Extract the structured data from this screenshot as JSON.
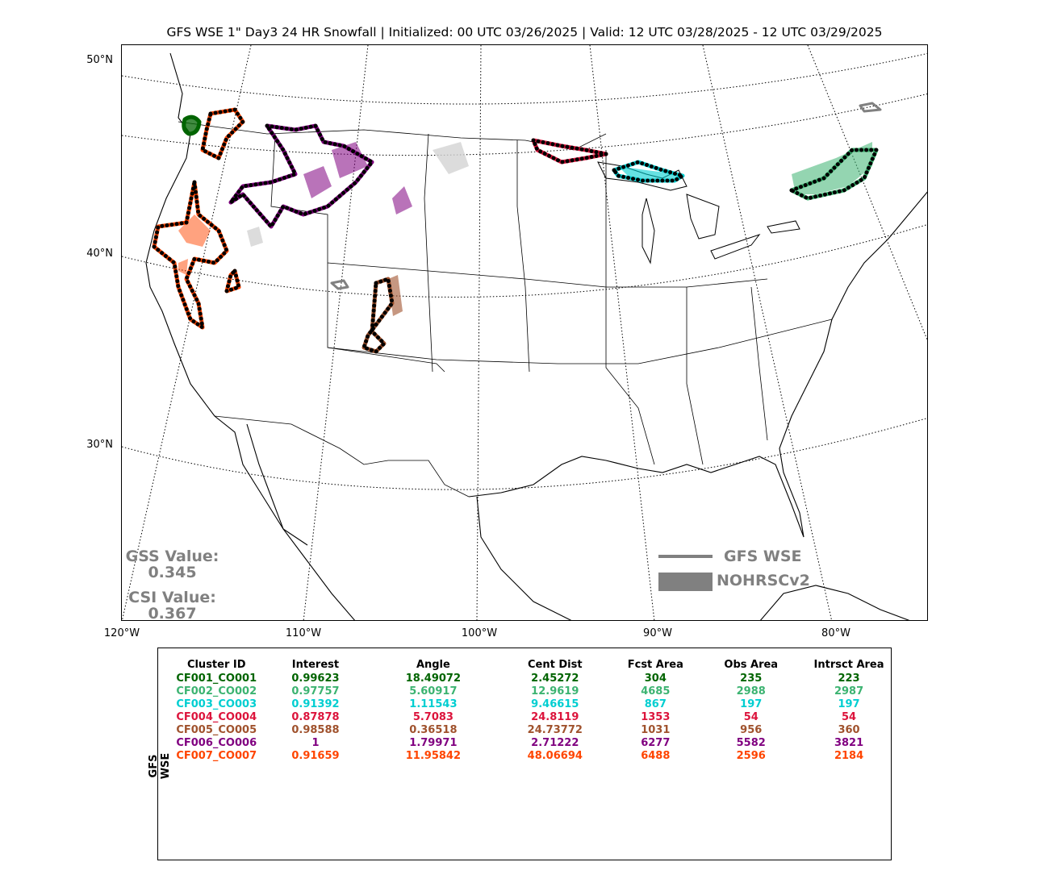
{
  "title": "GFS WSE 1\" Day3 24 HR Snowfall | Initialized: 00 UTC 03/26/2025 | Valid: 12 UTC 03/28/2025 - 12 UTC 03/29/2025",
  "map": {
    "lat_labels": [
      "50°N",
      "40°N",
      "30°N"
    ],
    "lon_labels": [
      "120°W",
      "110°W",
      "100°W",
      "90°W",
      "80°W"
    ],
    "gss_label": "GSS Value:",
    "gss_value": "0.345",
    "csi_label": "CSI Value:",
    "csi_value": "0.367",
    "legend": {
      "forecast_label": "GFS WSE",
      "observed_label": "NOHRSCv2"
    },
    "colors": {
      "legend_gray": "#808080",
      "CF001": "#006400",
      "CF002": "#3cb371",
      "CF003": "#00ced1",
      "CF004": "#dc143c",
      "CF005": "#a0522d",
      "CF006": "#800080",
      "CF007": "#ff4500"
    }
  },
  "table": {
    "side_label": "GFS WSE",
    "headers": [
      "Cluster ID",
      "Interest",
      "Angle",
      "Cent Dist",
      "Fcst Area",
      "Obs Area",
      "Intrsct Area"
    ],
    "rows": [
      {
        "color": "#006400",
        "cells": [
          "CF001_CO001",
          "0.99623",
          "18.49072",
          "2.45272",
          "304",
          "235",
          "223"
        ]
      },
      {
        "color": "#3cb371",
        "cells": [
          "CF002_CO002",
          "0.97757",
          "5.60917",
          "12.9619",
          "4685",
          "2988",
          "2987"
        ]
      },
      {
        "color": "#00ced1",
        "cells": [
          "CF003_CO003",
          "0.91392",
          "1.11543",
          "9.46615",
          "867",
          "197",
          "197"
        ]
      },
      {
        "color": "#dc143c",
        "cells": [
          "CF004_CO004",
          "0.87878",
          "5.7083",
          "24.8119",
          "1353",
          "54",
          "54"
        ]
      },
      {
        "color": "#a0522d",
        "cells": [
          "CF005_CO005",
          "0.98588",
          "0.36518",
          "24.73772",
          "1031",
          "956",
          "360"
        ]
      },
      {
        "color": "#800080",
        "cells": [
          "CF006_CO006",
          "1",
          "1.79971",
          "2.71222",
          "6277",
          "5582",
          "3821"
        ]
      },
      {
        "color": "#ff4500",
        "cells": [
          "CF007_CO007",
          "0.91659",
          "11.95842",
          "48.06694",
          "6488",
          "2596",
          "2184"
        ]
      }
    ]
  }
}
